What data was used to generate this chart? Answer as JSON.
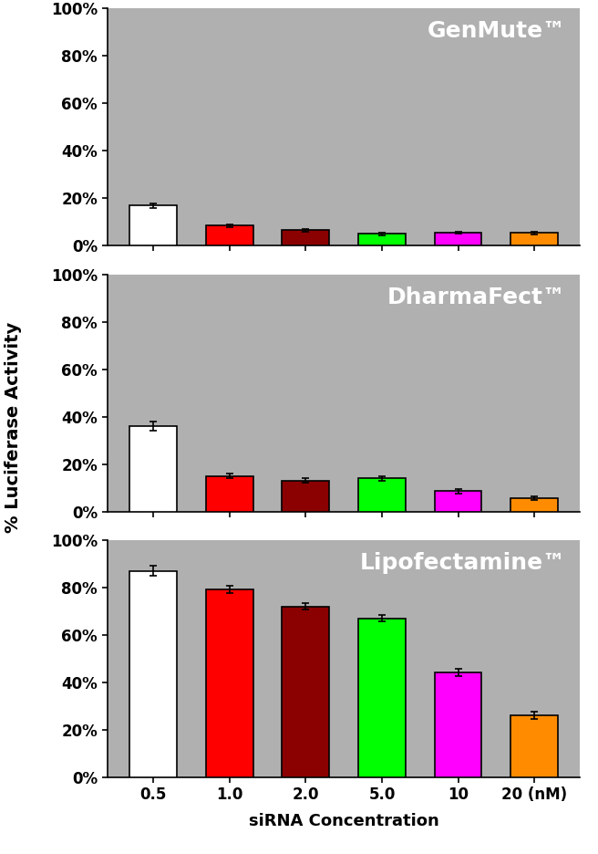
{
  "panels": [
    {
      "title": "GenMute™",
      "values": [
        17,
        8.5,
        6.5,
        5,
        5.5,
        5.5
      ],
      "errors": [
        1.0,
        0.6,
        0.6,
        0.5,
        0.4,
        0.6
      ]
    },
    {
      "title": "DharmaFect™",
      "values": [
        36,
        15,
        13,
        14,
        8.5,
        5.5
      ],
      "errors": [
        2.0,
        1.0,
        1.0,
        1.0,
        1.0,
        0.8
      ]
    },
    {
      "title": "Lipofectamine™",
      "values": [
        87,
        79,
        72,
        67,
        44,
        26
      ],
      "errors": [
        2.0,
        1.5,
        1.5,
        1.5,
        1.5,
        1.5
      ]
    }
  ],
  "categories": [
    "0.5",
    "1.0",
    "2.0",
    "5.0",
    "10",
    "20 (nM)"
  ],
  "bar_colors": [
    "#ffffff",
    "#ff0000",
    "#8b0000",
    "#00ff00",
    "#ff00ff",
    "#ff8c00"
  ],
  "bar_edge_colors": [
    "#000000",
    "#000000",
    "#000000",
    "#000000",
    "#000000",
    "#000000"
  ],
  "xlabel": "siRNA Concentration",
  "ylabel": "% Luciferase Activity",
  "bg_color": "#b0b0b0",
  "fig_bg_color": "#ffffff",
  "yticks": [
    0,
    20,
    40,
    60,
    80,
    100
  ],
  "ytick_labels": [
    "0%",
    "20%",
    "40%",
    "60%",
    "80%",
    "100%"
  ]
}
